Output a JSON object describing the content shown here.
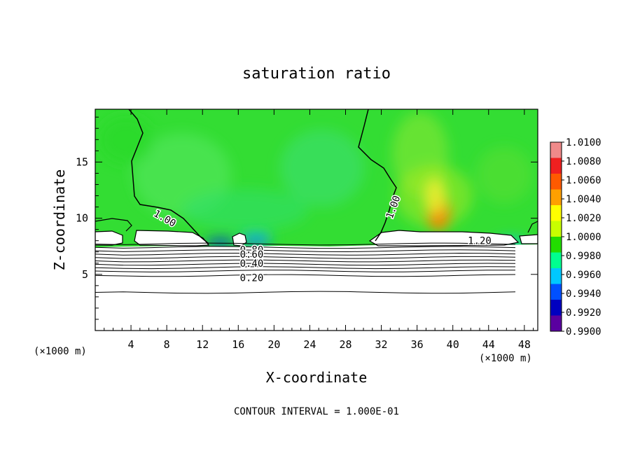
{
  "chart_data": {
    "type": "heatmap",
    "title": "saturation ratio",
    "xlabel": "X-coordinate",
    "ylabel": "Z-coordinate",
    "x_unit": "(×1000 m)",
    "y_unit": "(×1000 m)",
    "footer": "CONTOUR INTERVAL = 1.000E-01",
    "xlim": [
      0,
      49.5
    ],
    "ylim": [
      0,
      19.7
    ],
    "x_ticks": [
      4,
      8,
      12,
      16,
      20,
      24,
      28,
      32,
      36,
      40,
      44,
      48
    ],
    "y_ticks": [
      5,
      10,
      15
    ],
    "colorbar": {
      "labels": [
        "1.0100",
        "1.0080",
        "1.0060",
        "1.0040",
        "1.0020",
        "1.0000",
        "0.9980",
        "0.9960",
        "0.9940",
        "0.9920",
        "0.9900"
      ],
      "colors": [
        "#f08a8a",
        "#f02020",
        "#ff5a00",
        "#ffa000",
        "#ffff00",
        "#c8ff00",
        "#22dd00",
        "#00ff90",
        "#00c8ff",
        "#0050ff",
        "#0000c0",
        "#5a00a0"
      ]
    },
    "field": {
      "background_value": 1.0003,
      "background_color": "#33dd33",
      "features": [
        {
          "x": 38.4,
          "z": 10.5,
          "value": 1.0055,
          "color": "#ff8000"
        },
        {
          "x": 38.0,
          "z": 12.0,
          "value": 1.0025,
          "color": "#e8ee30"
        },
        {
          "x": 18.0,
          "z": 8.5,
          "value": 0.9965,
          "color": "#22dd99"
        },
        {
          "x": 18.0,
          "z": 8.0,
          "value": 0.9945,
          "color": "#0070ff"
        },
        {
          "x": 14.0,
          "z": 7.8,
          "value": 0.9925,
          "color": "#0030e0"
        },
        {
          "x": 46.5,
          "z": 7.8,
          "value": 0.9955,
          "color": "#00c8ff"
        }
      ]
    },
    "contour_labels": [
      {
        "text": "1.00",
        "x": 7.8,
        "z": 10.0
      },
      {
        "text": "1.00",
        "x": 33.3,
        "z": 11.0
      },
      {
        "text": "1.20",
        "x": 43.0,
        "z": 8.0
      },
      {
        "text": "0.80",
        "x": 17.5,
        "z": 7.2
      },
      {
        "text": "0.60",
        "x": 17.5,
        "z": 6.8
      },
      {
        "text": "0.40",
        "x": 17.5,
        "z": 6.0
      },
      {
        "text": "0.20",
        "x": 17.5,
        "z": 4.7
      }
    ],
    "contour_lines_z": [
      3.4,
      4.9,
      5.3,
      5.6,
      5.9,
      6.2,
      6.5,
      6.8,
      7.1,
      7.4,
      7.7
    ]
  }
}
